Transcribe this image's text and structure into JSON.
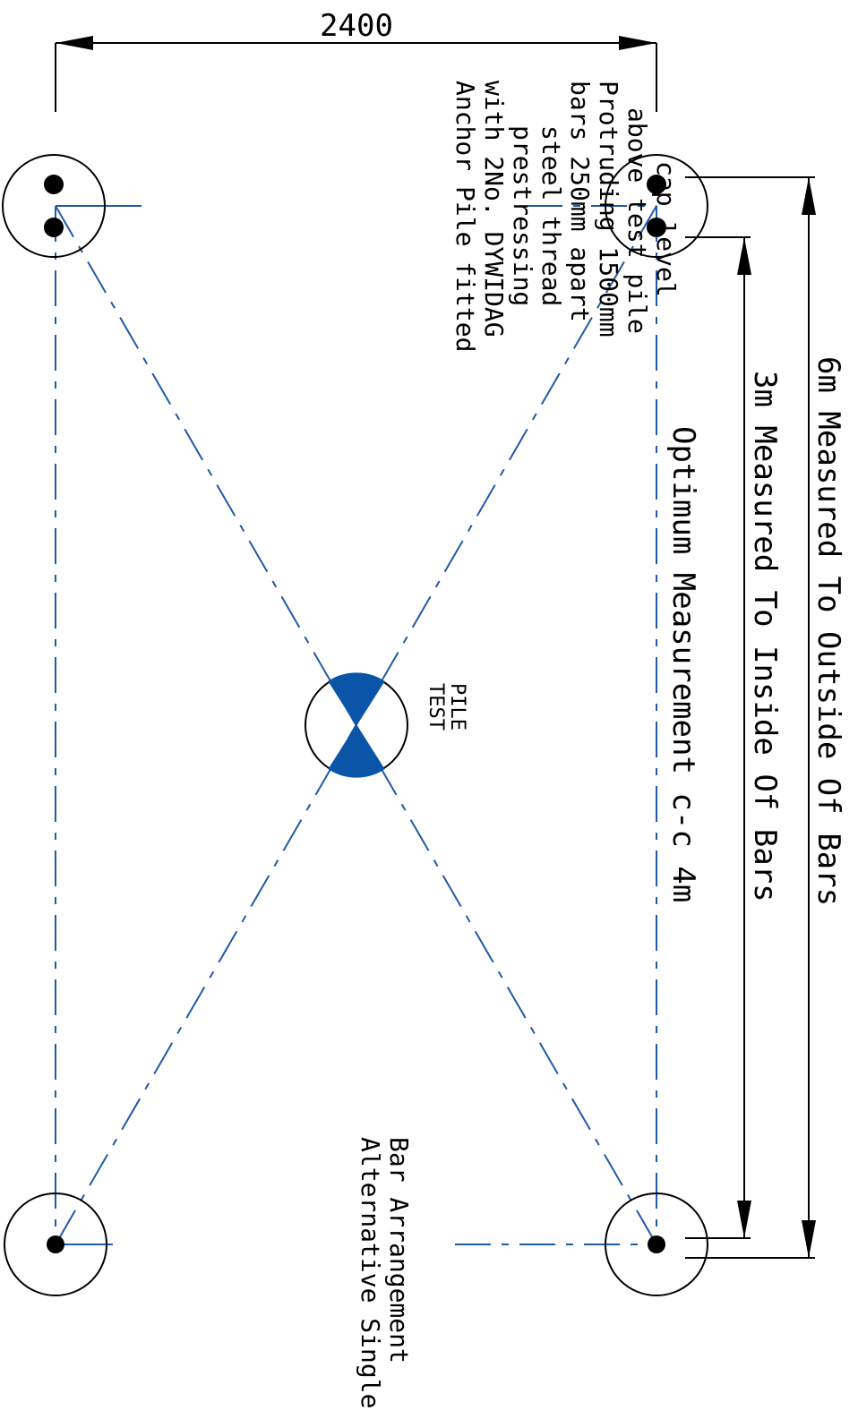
{
  "dimensions": {
    "top_width": "2400",
    "outer": "6m  Measured To Outside Of Bars",
    "inner": "3m Measured To Inside Of Bars",
    "optimum": "Optimum Measurement c-c 4m"
  },
  "notes": {
    "anchor_pile": [
      "Anchor Pile fitted",
      "with 2No. DYWIDAG",
      "prestressing",
      "steel thread",
      "bars 250mm apart",
      "Protruding 1500mm",
      "above test pile",
      "cap level"
    ],
    "alternative": [
      "Alternative Single",
      "Bar Arrangement"
    ],
    "test_pile": [
      "TEST",
      "PILE"
    ]
  },
  "colors": {
    "centerline": "#1f5aa6",
    "test_pile_fill": "#0a55a8",
    "linework": "#000000"
  }
}
